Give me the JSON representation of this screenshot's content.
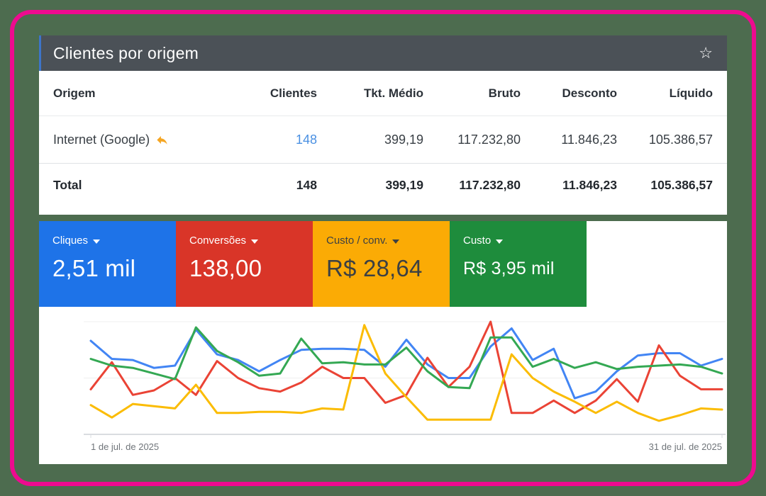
{
  "page": {
    "background_color": "#4d6c4f",
    "frame_border_color": "#ee0b8f"
  },
  "table_panel": {
    "title": "Clientes por origem",
    "star_icon": "☆",
    "header_bg": "#4b5157",
    "accent_color": "#3d74c9",
    "link_color": "#4a90e2",
    "reply_icon_color": "#f5a623",
    "columns": [
      "Origem",
      "Clientes",
      "Tkt. Médio",
      "Bruto",
      "Desconto",
      "Líquido"
    ],
    "rows": [
      {
        "origem": "Internet (Google)",
        "clientes": "148",
        "tkt_medio": "399,19",
        "bruto": "117.232,80",
        "desconto": "11.846,23",
        "liquido": "105.386,57"
      }
    ],
    "total": {
      "label": "Total",
      "clientes": "148",
      "tkt_medio": "399,19",
      "bruto": "117.232,80",
      "desconto": "11.846,23",
      "liquido": "105.386,57"
    }
  },
  "metric_cards": [
    {
      "label": "Cliques",
      "value": "2,51 mil",
      "bg": "#1e73e8",
      "fg": "#ffffff"
    },
    {
      "label": "Conversões",
      "value": "138,00",
      "bg": "#d93528",
      "fg": "#ffffff"
    },
    {
      "label": "Custo / conv.",
      "value": "R$ 28,64",
      "bg": "#fbab05",
      "fg": "#3c4043"
    },
    {
      "label": "Custo",
      "value": "R$ 3,95 mil",
      "bg": "#1e8c3c",
      "fg": "#ffffff"
    }
  ],
  "chart_data": {
    "type": "line",
    "title": "",
    "xlabel": "",
    "ylabel": "",
    "x_tick_labels": [
      "1 de jul. de 2025",
      "31 de jul. de 2025"
    ],
    "x": [
      1,
      2,
      3,
      4,
      5,
      6,
      7,
      8,
      9,
      10,
      11,
      12,
      13,
      14,
      15,
      16,
      17,
      18,
      19,
      20,
      21,
      22,
      23,
      24,
      25,
      26,
      27,
      28,
      29,
      30,
      31
    ],
    "x_unit": "day of July 2025",
    "y_scale": "normalized 0-100 per series (no y-axis labels shown)",
    "ylim": [
      0,
      100
    ],
    "grid": "two light horizontal gridlines plus bottom axis",
    "legend_position": "none (colors match metric cards above)",
    "axis_label_color": "#70757a",
    "axis_line_color": "#dadce0",
    "grid_line_color": "#efefef",
    "series": [
      {
        "name": "Cliques",
        "color": "#4285f4",
        "values": [
          83,
          67,
          66,
          59,
          61,
          93,
          71,
          66,
          56,
          66,
          75,
          76,
          76,
          75,
          60,
          84,
          62,
          50,
          50,
          78,
          94,
          66,
          76,
          32,
          38,
          56,
          70,
          72,
          72,
          61,
          67
        ]
      },
      {
        "name": "Conversões",
        "color": "#ea4335",
        "values": [
          40,
          64,
          35,
          39,
          50,
          35,
          65,
          50,
          41,
          38,
          46,
          60,
          50,
          50,
          28,
          35,
          68,
          42,
          60,
          100,
          19,
          19,
          30,
          19,
          30,
          49,
          29,
          79,
          52,
          40,
          40
        ]
      },
      {
        "name": "Custo / conv.",
        "color": "#fbbc04",
        "values": [
          26,
          15,
          27,
          25,
          23,
          44,
          19,
          19,
          20,
          20,
          19,
          23,
          22,
          97,
          54,
          33,
          13,
          13,
          13,
          13,
          71,
          50,
          38,
          29,
          19,
          29,
          19,
          12,
          17,
          23,
          22
        ]
      },
      {
        "name": "Custo",
        "color": "#34a853",
        "values": [
          67,
          61,
          59,
          54,
          49,
          95,
          74,
          64,
          52,
          54,
          85,
          63,
          64,
          62,
          62,
          77,
          56,
          42,
          41,
          86,
          86,
          60,
          67,
          59,
          64,
          58,
          60,
          61,
          62,
          60,
          54
        ]
      }
    ]
  }
}
